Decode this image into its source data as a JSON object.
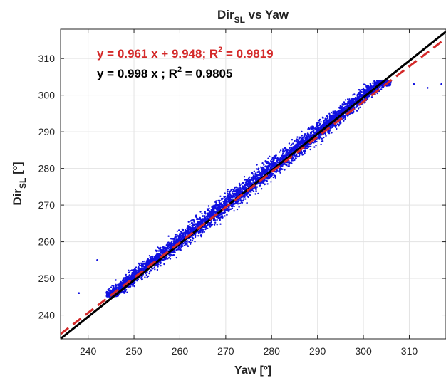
{
  "chart_data": {
    "type": "scatter",
    "title": {
      "main": "Dir",
      "sub": "SL",
      "rest": " vs Yaw"
    },
    "xlabel": "Yaw [º]",
    "ylabel": {
      "main": "Dir",
      "sub": "SL",
      "rest": " [º]"
    },
    "xlim": [
      234,
      318
    ],
    "ylim": [
      233.5,
      318
    ],
    "xticks": [
      240,
      250,
      260,
      270,
      280,
      290,
      300,
      310
    ],
    "yticks": [
      240,
      250,
      260,
      270,
      280,
      290,
      300,
      310
    ],
    "grid": true,
    "colors": {
      "points": "#1010e0",
      "fit_line": "#d42a2a",
      "identity_line": "#000000"
    },
    "fits": [
      {
        "slope": 0.961,
        "intercept": 9.948,
        "label_pre": "y =  0.961 x +  9.948;   R",
        "label_sup": "2",
        "label_post": " = 0.9819",
        "style": "dashed",
        "color": "#d42a2a"
      },
      {
        "slope": 0.998,
        "intercept": 0,
        "label_pre": "y =  0.998 x ;   R",
        "label_sup": "2",
        "label_post": " = 0.9805",
        "style": "solid",
        "color": "#000000"
      }
    ],
    "series": [
      {
        "points_x_range": [
          237,
          317
        ],
        "approx_count": 5000,
        "relation": "y ≈ x",
        "sample": [
          [
            238,
            246
          ],
          [
            242,
            255
          ],
          [
            246,
            246
          ],
          [
            250,
            252
          ],
          [
            255,
            256
          ],
          [
            260,
            262
          ],
          [
            265,
            267
          ],
          [
            270,
            270
          ],
          [
            275,
            275
          ],
          [
            280,
            280
          ],
          [
            285,
            285
          ],
          [
            290,
            290
          ],
          [
            295,
            297
          ],
          [
            300,
            301
          ],
          [
            305,
            303
          ],
          [
            311,
            303
          ],
          [
            314,
            302
          ],
          [
            317,
            303
          ]
        ]
      }
    ]
  }
}
